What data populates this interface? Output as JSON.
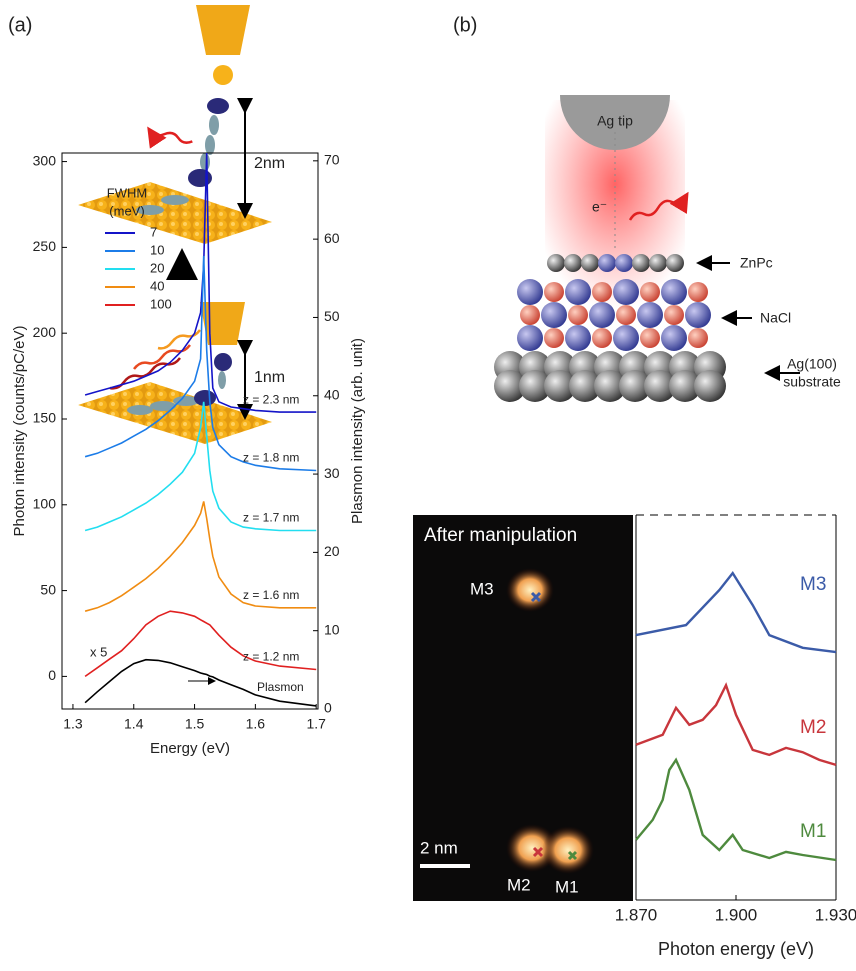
{
  "panel_a": {
    "tag": "(a)",
    "height_top": "2nm",
    "height_bottom": "1nm"
  },
  "panel_b": {
    "tag": "(b)",
    "tip": "Ag tip",
    "electron": "e⁻",
    "molecule": "ZnPc",
    "layer": "NaCl",
    "substrate": [
      "Ag(100)",
      "substrate"
    ]
  },
  "image": {
    "title": "After manipulation",
    "labels": [
      "M3",
      "M2",
      "M1"
    ],
    "scale_bar": "2 nm"
  },
  "chart_data": [
    {
      "type": "line",
      "x_label": "Energy (eV)",
      "y_label": "Photon intensity (counts/pC/eV)",
      "y2_label": "Plasmon intensity (arb. unit)",
      "legend_title": [
        "FWHM",
        "(meV)"
      ],
      "annotations": [
        "x 5"
      ],
      "x": [
        1.32,
        1.34,
        1.36,
        1.38,
        1.4,
        1.42,
        1.44,
        1.46,
        1.48,
        1.5,
        1.51,
        1.515,
        1.52,
        1.525,
        1.53,
        1.54,
        1.56,
        1.58,
        1.6,
        1.64,
        1.7
      ],
      "xlim": [
        1.282,
        1.703
      ],
      "xticks": [
        1.3,
        1.4,
        1.5,
        1.6,
        1.7
      ],
      "ylim": [
        -19,
        305
      ],
      "yticks": [
        0,
        50,
        100,
        150,
        200,
        250,
        300
      ],
      "y2lim": [
        0,
        71
      ],
      "y2ticks": [
        0,
        10,
        20,
        30,
        40,
        50,
        60,
        70
      ],
      "series": [
        {
          "name": "7",
          "label": "z = 2.3 nm",
          "color": "#1414c8",
          "values": [
            164,
            166,
            168,
            170,
            172,
            175,
            178,
            183,
            190,
            200,
            212,
            240,
            305,
            200,
            168,
            160,
            157,
            156,
            155,
            154,
            154
          ]
        },
        {
          "name": "10",
          "label": "z = 1.8 nm",
          "color": "#1c7ce8",
          "values": [
            128,
            130,
            133,
            136,
            140,
            144,
            149,
            155,
            162,
            172,
            185,
            245,
            190,
            160,
            145,
            135,
            128,
            125,
            123,
            121,
            120
          ]
        },
        {
          "name": "20",
          "label": "z = 1.7 nm",
          "color": "#22def0",
          "values": [
            85,
            87,
            90,
            93,
            97,
            101,
            106,
            112,
            119,
            130,
            145,
            160,
            140,
            120,
            108,
            98,
            90,
            87,
            86,
            85,
            85
          ]
        },
        {
          "name": "40",
          "label": "z = 1.6 nm",
          "color": "#f08c12",
          "values": [
            38,
            40,
            43,
            47,
            52,
            57,
            63,
            70,
            78,
            88,
            95,
            102,
            92,
            80,
            70,
            58,
            48,
            43,
            41,
            40,
            40
          ]
        },
        {
          "name": "100",
          "label": "z = 1.2 nm",
          "color": "#e02020",
          "values": [
            0,
            5,
            10,
            15,
            22,
            30,
            35,
            38,
            37,
            35,
            33,
            32,
            31,
            30,
            28,
            24,
            17,
            12,
            9,
            6,
            4
          ]
        },
        {
          "name": "Plasmon",
          "axis": "y2",
          "color": "#000000",
          "values": [
            0.8,
            2.2,
            3.5,
            4.8,
            5.8,
            6.3,
            6.2,
            5.9,
            5.4,
            4.9,
            4.6,
            4.5,
            4.4,
            4.2,
            4.1,
            3.7,
            3.1,
            2.5,
            1.8,
            1.0,
            0.4
          ]
        }
      ]
    },
    {
      "type": "line",
      "x_label": "Photon energy (eV)",
      "xlim": [
        1.87,
        1.93
      ],
      "xticks": [
        {
          "value": 1.87,
          "label": "1.870"
        },
        {
          "value": 1.9,
          "label": "1.900"
        },
        {
          "value": 1.93,
          "label": "1.930"
        }
      ],
      "ylim": [
        0,
        100
      ],
      "series": [
        {
          "name": "M3",
          "color": "#3b5ba8",
          "x": [
            1.87,
            1.885,
            1.895,
            1.899,
            1.905,
            1.91,
            1.92,
            1.93
          ],
          "values": [
            68.8,
            71.4,
            80.5,
            84.9,
            76.6,
            68.8,
            65.5,
            64.4
          ]
        },
        {
          "name": "M2",
          "color": "#c8363c",
          "x": [
            1.87,
            1.878,
            1.882,
            1.886,
            1.89,
            1.894,
            1.897,
            1.9,
            1.905,
            1.91,
            1.915,
            1.92,
            1.925,
            1.93
          ],
          "values": [
            40.3,
            42.9,
            49.9,
            45.5,
            46.8,
            50.6,
            55.8,
            48.1,
            39.0,
            37.7,
            39.5,
            38.4,
            36.4,
            35.1
          ]
        },
        {
          "name": "M1",
          "color": "#4e8a3e",
          "x": [
            1.87,
            1.875,
            1.878,
            1.88,
            1.882,
            1.886,
            1.89,
            1.895,
            1.899,
            1.902,
            1.91,
            1.915,
            1.92,
            1.93
          ],
          "values": [
            15.6,
            20.8,
            26.0,
            33.8,
            36.4,
            28.6,
            16.9,
            13.0,
            16.9,
            13.0,
            10.9,
            12.5,
            11.7,
            10.4
          ]
        }
      ]
    }
  ]
}
